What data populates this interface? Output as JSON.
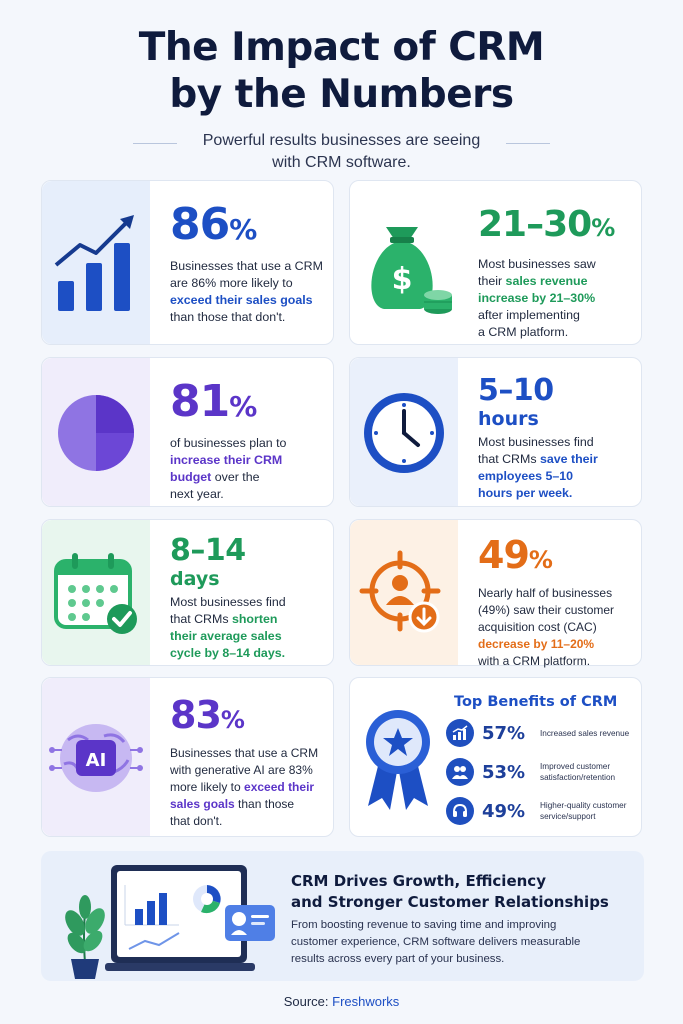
{
  "header": {
    "title_line1": "The Impact of CRM",
    "title_line2": "by the Numbers",
    "subtitle_line1": "Powerful results businesses are seeing",
    "subtitle_line2": "with CRM software."
  },
  "stats": {
    "s86": {
      "number": "86",
      "unit": "%",
      "l1": "Businesses that use a CRM",
      "l2": "are 86% more likely to",
      "l3": "exceed their sales goals",
      "l4": "than those that don't.",
      "icon": "growth-bar-chart-icon",
      "color": "#1d4fc4"
    },
    "s21": {
      "number": "21–30",
      "unit": "%",
      "l1": "Most businesses saw",
      "l2a": "their ",
      "l2b": "sales revenue",
      "l3": "increase by 21–30%",
      "l4": "after implementing",
      "l5": "a CRM platform.",
      "icon": "money-bag-icon",
      "color": "#1e9a5a"
    },
    "s81": {
      "number": "81",
      "unit": "%",
      "l1": "of businesses plan to",
      "l2": "increase their CRM",
      "l3a": "budget",
      "l3b": " over the",
      "l4": "next year.",
      "icon": "pie-chart-icon",
      "color": "#5b35c8"
    },
    "s5": {
      "number": "5–10",
      "unit": "hours",
      "l1": "Most businesses find",
      "l2a": "that CRMs ",
      "l2b": "save their",
      "l3": "employees 5–10",
      "l4": "hours per week.",
      "icon": "clock-icon",
      "color": "#1d4fc4"
    },
    "s8": {
      "number": "8–14",
      "unit": "days",
      "l1": "Most businesses find",
      "l2a": "that CRMs ",
      "l2b": "shorten",
      "l3": "their average sales",
      "l4": "cycle by 8–14 days.",
      "icon": "calendar-check-icon",
      "color": "#1e9a5a"
    },
    "s49": {
      "number": "49",
      "unit": "%",
      "l1": "Nearly half of businesses",
      "l2": "(49%) saw their customer",
      "l3": "acquisition cost (CAC)",
      "l4": "decrease by 11–20%",
      "l5": "with a CRM platform.",
      "icon": "target-user-icon",
      "color": "#e36d18"
    },
    "s83": {
      "number": "83",
      "unit": "%",
      "l1": "Businesses that use a CRM",
      "l2": "with generative AI are 83%",
      "l3a": "more likely to ",
      "l3b": "exceed their",
      "l4a": "sales goals",
      "l4b": " than those",
      "l5": "that don't.",
      "icon": "ai-brain-icon",
      "color": "#5b35c8"
    }
  },
  "benefits": {
    "title": "Top Benefits of CRM",
    "items": [
      {
        "value": "57%",
        "label": "Increased sales revenue",
        "icon": "chart-icon"
      },
      {
        "value": "53%",
        "label_l1": "Improved customer",
        "label_l2": "satisfaction/retention",
        "icon": "users-icon"
      },
      {
        "value": "49%",
        "label_l1": "Higher-quality customer",
        "label_l2": "service/support",
        "icon": "headset-icon"
      }
    ],
    "badge_icon": "award-ribbon-icon"
  },
  "banner": {
    "heading_l1": "CRM Drives Growth, Efficiency",
    "heading_l2": "and Stronger Customer Relationships",
    "body_l1": "From boosting revenue to saving time and improving",
    "body_l2": "customer experience, CRM software delivers measurable",
    "body_l3": "results across every part of your business.",
    "illustration": "laptop-dashboard-illustration"
  },
  "source": {
    "label": "Source:",
    "name": "Freshworks"
  }
}
